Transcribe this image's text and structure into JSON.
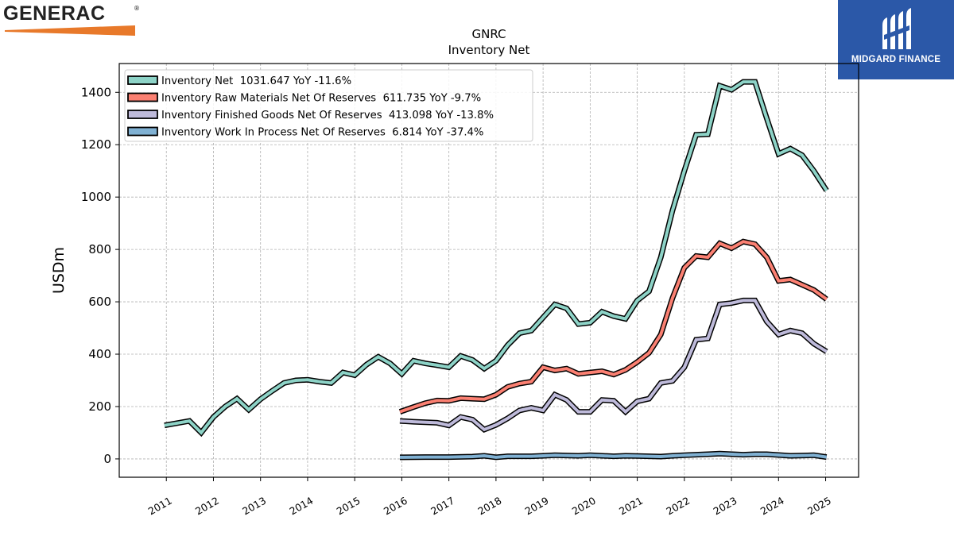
{
  "branding": {
    "left_logo_text": "GENERAC",
    "left_logo_mark": "®",
    "left_logo_accent": "#e8792a",
    "right_logo_text": "MIDGARD FINANCE",
    "right_logo_bg": "#2b58a8"
  },
  "chart_data": {
    "type": "line",
    "title": "GNRC",
    "subtitle": "Inventory Net",
    "ylabel": "USDm",
    "xlabel": "",
    "ylim": [
      -70,
      1510
    ],
    "xlim": [
      2010.0,
      2025.7
    ],
    "yticks": [
      0,
      200,
      400,
      600,
      800,
      1000,
      1200,
      1400
    ],
    "xticks": [
      "2011",
      "2012",
      "2013",
      "2014",
      "2015",
      "2016",
      "2017",
      "2018",
      "2019",
      "2020",
      "2021",
      "2022",
      "2023",
      "2024",
      "2025"
    ],
    "grid": true,
    "legend_position": "top-left",
    "series": [
      {
        "name": "Inventory Net  1031.647 YoY -11.6%",
        "color": "#8dd3c7",
        "x": [
          2010.96,
          2011.49,
          2011.74,
          2012.0,
          2012.25,
          2012.5,
          2012.75,
          2013.0,
          2013.25,
          2013.5,
          2013.75,
          2014.0,
          2014.25,
          2014.5,
          2014.75,
          2015.0,
          2015.25,
          2015.5,
          2015.75,
          2016.0,
          2016.25,
          2016.5,
          2016.75,
          2017.0,
          2017.25,
          2017.5,
          2017.75,
          2018.0,
          2018.25,
          2018.5,
          2018.75,
          2019.0,
          2019.25,
          2019.5,
          2019.75,
          2020.0,
          2020.25,
          2020.5,
          2020.75,
          2021.0,
          2021.25,
          2021.5,
          2021.75,
          2022.0,
          2022.25,
          2022.5,
          2022.75,
          2023.0,
          2023.25,
          2023.5,
          2023.75,
          2024.0,
          2024.25,
          2024.5,
          2024.75,
          2025.02
        ],
        "values": [
          128,
          145,
          100,
          160,
          200,
          230,
          188,
          228,
          260,
          290,
          300,
          302,
          295,
          290,
          330,
          320,
          360,
          390,
          365,
          325,
          375,
          365,
          358,
          350,
          393,
          378,
          345,
          375,
          435,
          480,
          490,
          540,
          590,
          575,
          515,
          520,
          562,
          545,
          535,
          605,
          640,
          770,
          950,
          1100,
          1238,
          1240,
          1425,
          1410,
          1440,
          1440,
          1300,
          1165,
          1185,
          1160,
          1100,
          1025
        ]
      },
      {
        "name": "Inventory Raw Materials Net Of Reserves  611.735 YoY -9.7%",
        "color": "#fb8072",
        "x": [
          2015.96,
          2016.25,
          2016.5,
          2016.75,
          2017.0,
          2017.25,
          2017.5,
          2017.75,
          2018.0,
          2018.25,
          2018.5,
          2018.75,
          2019.0,
          2019.25,
          2019.5,
          2019.75,
          2020.0,
          2020.25,
          2020.5,
          2020.75,
          2021.0,
          2021.25,
          2021.5,
          2021.75,
          2022.0,
          2022.25,
          2022.5,
          2022.75,
          2023.0,
          2023.25,
          2023.5,
          2023.75,
          2024.0,
          2024.25,
          2024.5,
          2024.75,
          2025.02
        ],
        "values": [
          180,
          198,
          213,
          223,
          222,
          232,
          230,
          228,
          245,
          275,
          288,
          295,
          350,
          338,
          345,
          325,
          330,
          335,
          322,
          340,
          370,
          405,
          475,
          615,
          730,
          775,
          770,
          823,
          805,
          830,
          820,
          770,
          680,
          685,
          665,
          645,
          610
        ]
      },
      {
        "name": "Inventory Finished Goods Net Of Reserves  413.098 YoY -13.8%",
        "color": "#bebada",
        "x": [
          2015.96,
          2016.25,
          2016.5,
          2016.75,
          2017.0,
          2017.25,
          2017.5,
          2017.75,
          2018.0,
          2018.25,
          2018.5,
          2018.75,
          2019.0,
          2019.25,
          2019.5,
          2019.75,
          2020.0,
          2020.25,
          2020.5,
          2020.75,
          2021.0,
          2021.25,
          2021.5,
          2021.75,
          2022.0,
          2022.25,
          2022.5,
          2022.75,
          2023.0,
          2023.25,
          2023.5,
          2023.75,
          2024.0,
          2024.25,
          2024.5,
          2024.75,
          2025.02
        ],
        "values": [
          145,
          142,
          140,
          138,
          128,
          160,
          150,
          112,
          130,
          155,
          185,
          195,
          185,
          245,
          225,
          180,
          180,
          225,
          222,
          180,
          220,
          230,
          290,
          298,
          350,
          455,
          460,
          590,
          595,
          605,
          605,
          525,
          475,
          490,
          480,
          440,
          410
        ]
      },
      {
        "name": "Inventory Work In Process Net Of Reserves  6.814 YoY -37.4%",
        "color": "#80b1d3",
        "x": [
          2015.96,
          2016.5,
          2017.0,
          2017.5,
          2017.75,
          2018.0,
          2018.25,
          2018.75,
          2019.0,
          2019.25,
          2019.75,
          2020.0,
          2020.5,
          2020.75,
          2021.0,
          2021.5,
          2021.75,
          2022.0,
          2022.5,
          2022.75,
          2023.25,
          2023.5,
          2023.75,
          2024.25,
          2024.75,
          2025.02
        ],
        "values": [
          6,
          7,
          7,
          9,
          12,
          6,
          10,
          10,
          12,
          14,
          12,
          14,
          10,
          12,
          11,
          9,
          12,
          14,
          18,
          20,
          16,
          18,
          18,
          12,
          14,
          7
        ]
      }
    ]
  }
}
